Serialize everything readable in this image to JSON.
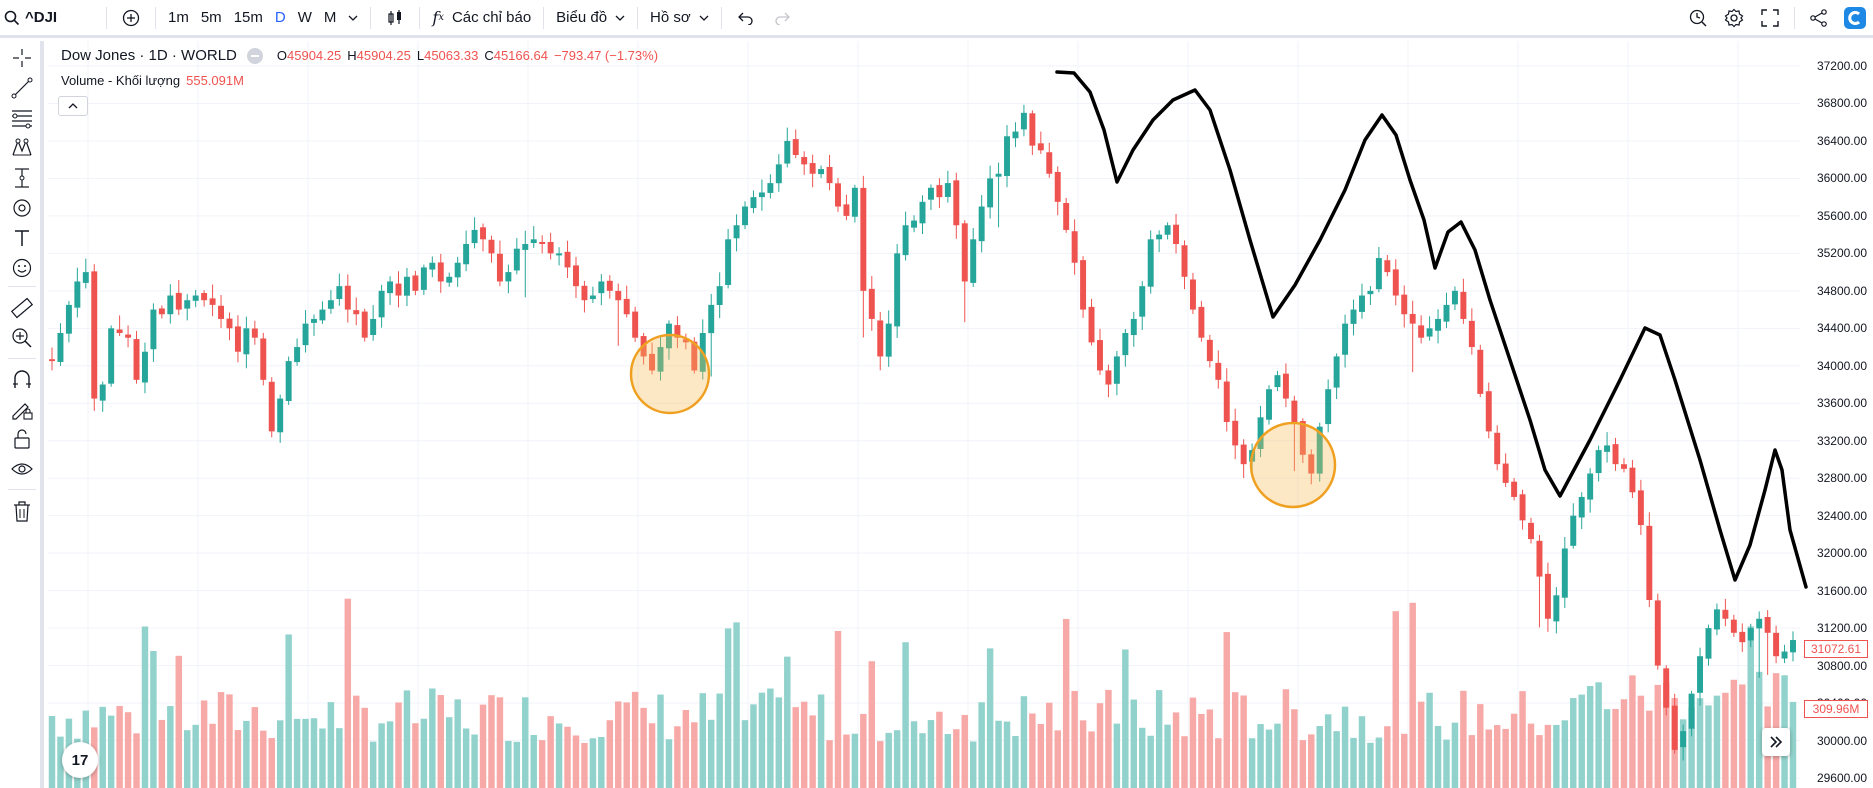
{
  "toolbar": {
    "symbol": "^DJI",
    "intervals": [
      "1m",
      "5m",
      "15m",
      "D",
      "W",
      "M"
    ],
    "active_interval": "D",
    "indicators_label": "Các chỉ báo",
    "chart_label": "Biểu đồ",
    "profile_label": "Hồ sơ"
  },
  "legend": {
    "title": "Dow Jones · 1D · WORLD",
    "open_label": "O",
    "open": "45904.25",
    "high_label": "H",
    "high": "45904.25",
    "low_label": "L",
    "low": "45063.33",
    "close_label": "C",
    "close": "45166.64",
    "change": "−793.47 (−1.73%)",
    "volume_label": "Volume - Khối lượng",
    "volume_value": "555.091M"
  },
  "price_scale": {
    "ticks": [
      "37200.00",
      "36800.00",
      "36400.00",
      "36000.00",
      "35600.00",
      "35200.00",
      "34800.00",
      "34400.00",
      "34000.00",
      "33600.00",
      "33200.00",
      "32800.00",
      "32400.00",
      "32000.00",
      "31600.00",
      "31200.00",
      "30800.00",
      "30400.00",
      "30000.00",
      "29600.00"
    ],
    "last_price": "31072.61",
    "last_volume": "309.96M"
  },
  "colors": {
    "up": "#26a69a",
    "down": "#ef5350",
    "up_volume": "#92d2cc",
    "down_volume": "#f7a9a7",
    "highlight": "#f0a020",
    "drawing": "#000000",
    "accent": "#2962ff"
  },
  "icons": {
    "left_tools": [
      "crosshair-icon",
      "trend-line-icon",
      "fib-icon",
      "pattern-icon",
      "measure-icon",
      "brush-icon",
      "text-icon",
      "emoji-icon",
      "ruler-icon",
      "zoom-in-icon",
      "magnet-icon",
      "lock-drawing-icon",
      "lock-icon",
      "eye-icon",
      "trash-icon"
    ],
    "right_tools": [
      "replay-icon",
      "settings-icon",
      "fullscreen-icon",
      "share-icon",
      "brand-icon"
    ]
  },
  "tv_logo_text": "17",
  "chart_data": {
    "type": "candlestick",
    "symbol": "^DJI",
    "timeframe": "1D",
    "y_range": [
      29600,
      37200
    ],
    "note_hidden": "",
    "ohlc_close_series": [
      34050,
      34350,
      34650,
      34900,
      35000,
      33650,
      33800,
      34400,
      34350,
      34300,
      33850,
      34150,
      34600,
      34550,
      34750,
      34600,
      34700,
      34750,
      34700,
      34650,
      34500,
      34400,
      34150,
      34400,
      34300,
      33850,
      33300,
      33650,
      34050,
      34200,
      34450,
      34500,
      34600,
      34700,
      34850,
      34600,
      34550,
      34300,
      34500,
      34800,
      34900,
      34750,
      34950,
      34800,
      35050,
      35100,
      34900,
      34950,
      35100,
      35300,
      35450,
      35350,
      35200,
      34900,
      35000,
      35250,
      35300,
      35350,
      35300,
      35200,
      35200,
      35050,
      34850,
      34700,
      34750,
      34900,
      34800,
      34700,
      34550,
      34300,
      34100,
      33950,
      34200,
      34450,
      34300,
      34250,
      33950,
      34350,
      34650,
      34850,
      35350,
      35500,
      35700,
      35800,
      35850,
      35950,
      36150,
      36400,
      36250,
      36150,
      36050,
      36100,
      35950,
      35700,
      35600,
      35900,
      34800,
      34500,
      34100,
      34450,
      35200,
      35500,
      35550,
      35750,
      35900,
      35800,
      35950,
      35500,
      34900,
      35350,
      35700,
      36000,
      36050,
      36450,
      36500,
      36700,
      36350,
      36300,
      36050,
      35750,
      35450,
      35100,
      34600,
      34250,
      33950,
      33800,
      34100,
      34350,
      34500,
      34850,
      35350,
      35400,
      35500,
      35300,
      34950,
      34600,
      34300,
      34050,
      33850,
      33400,
      33150,
      32950,
      33100,
      33450,
      33750,
      33900,
      33650,
      33400,
      33050,
      32850,
      33350,
      33750,
      34100,
      34450,
      34600,
      34750,
      34800,
      35150,
      35000,
      34750,
      34550,
      34450,
      34300,
      34400,
      34500,
      34650,
      34800,
      34500,
      34200,
      33700,
      33300,
      32950,
      32750,
      32600,
      32350,
      32150,
      31750,
      31300,
      31550,
      32050,
      32400,
      32600,
      32850,
      33100,
      33150,
      32950,
      32900,
      32650,
      32300,
      31500,
      30800,
      30350,
      29900,
      30100,
      30500,
      30900,
      31200,
      31400,
      31300,
      31150,
      31050,
      31200,
      31300,
      31150,
      30900,
      30950,
      31072.61
    ],
    "drawings": [
      {
        "type": "freehand",
        "color": "#000000"
      },
      {
        "type": "circle",
        "label": "",
        "color": "#f0a020"
      },
      {
        "type": "circle",
        "label": "",
        "color": "#f0a020"
      }
    ]
  }
}
